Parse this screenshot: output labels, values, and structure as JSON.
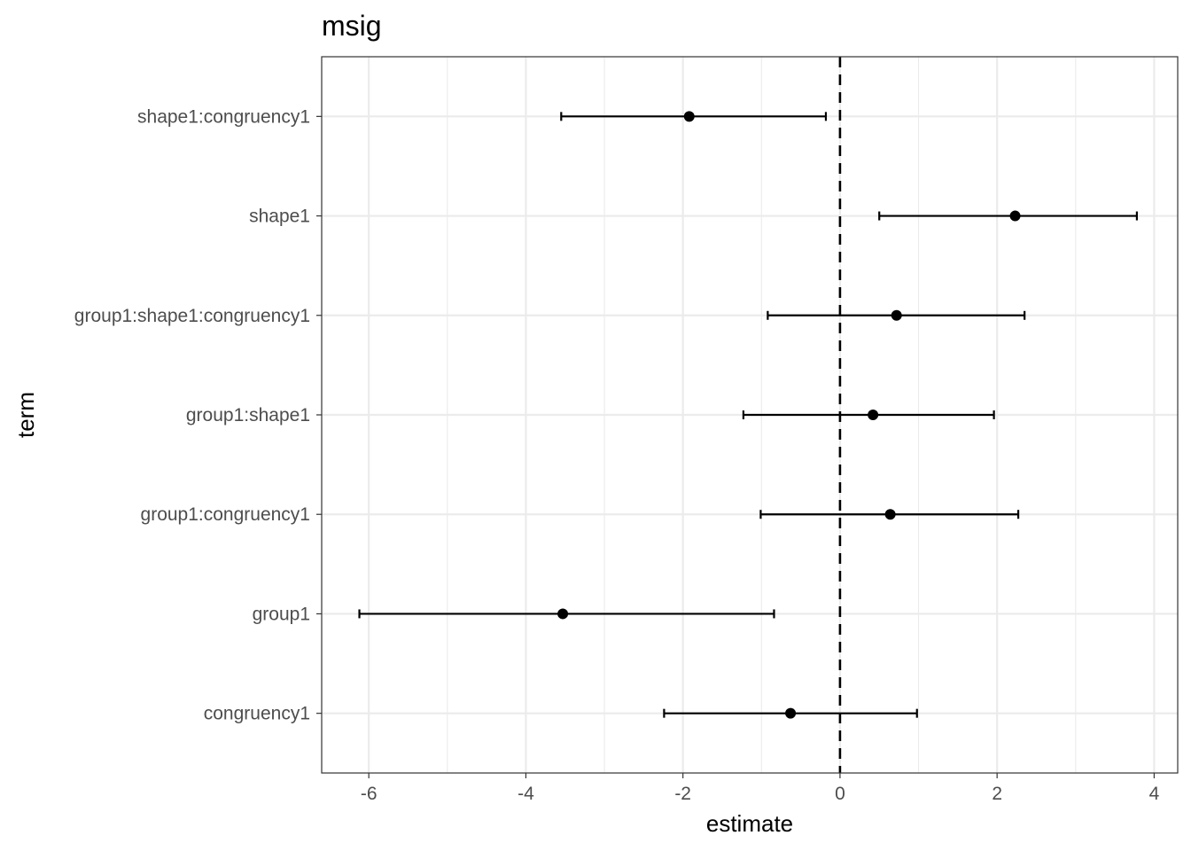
{
  "chart_data": {
    "type": "forest",
    "title": "msig",
    "xlabel": "estimate",
    "ylabel": "term",
    "xlim": [
      -6.6,
      4.3
    ],
    "x_ticks": [
      -6,
      -4,
      -2,
      0,
      2,
      4
    ],
    "x_tick_labels": [
      "-6",
      "-4",
      "-2",
      "0",
      "2",
      "4"
    ],
    "reference_line": 0,
    "grid": true,
    "terms": [
      {
        "term": "shape1:congruency1",
        "estimate": -1.92,
        "low": -3.55,
        "high": -0.18
      },
      {
        "term": "shape1",
        "estimate": 2.23,
        "low": 0.5,
        "high": 3.78
      },
      {
        "term": "group1:shape1:congruency1",
        "estimate": 0.72,
        "low": -0.92,
        "high": 2.35
      },
      {
        "term": "group1:shape1",
        "estimate": 0.42,
        "low": -1.23,
        "high": 1.96
      },
      {
        "term": "group1:congruency1",
        "estimate": 0.64,
        "low": -1.01,
        "high": 2.27
      },
      {
        "term": "group1",
        "estimate": -3.53,
        "low": -6.12,
        "high": -0.84
      },
      {
        "term": "congruency1",
        "estimate": -0.63,
        "low": -2.24,
        "high": 0.98
      }
    ]
  }
}
